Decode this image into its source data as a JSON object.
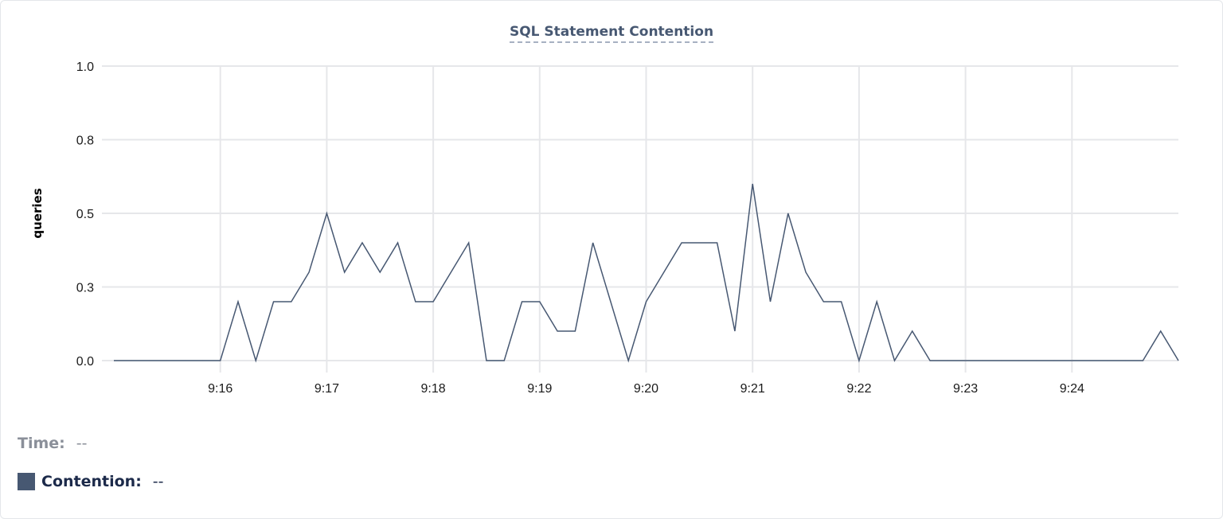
{
  "chart_data": {
    "type": "line",
    "title": "SQL Statement Contention",
    "xlabel": "",
    "ylabel": "queries",
    "ylim": [
      0,
      1.0
    ],
    "y_ticks": [
      0,
      0.25,
      0.5,
      0.75,
      1.0
    ],
    "y_tick_labels": [
      "0.0",
      "0.3",
      "0.5",
      "0.8",
      "1.0"
    ],
    "x_range": [
      "9:15:00",
      "9:25:00"
    ],
    "x_tick_labels": [
      "9:16",
      "9:17",
      "9:18",
      "9:19",
      "9:20",
      "9:21",
      "9:22",
      "9:23",
      "9:24"
    ],
    "grid": true,
    "line_color": "#475872",
    "x": [
      "9:15:00",
      "9:15:10",
      "9:15:20",
      "9:15:30",
      "9:15:40",
      "9:15:50",
      "9:16:00",
      "9:16:10",
      "9:16:20",
      "9:16:30",
      "9:16:40",
      "9:16:50",
      "9:17:00",
      "9:17:10",
      "9:17:20",
      "9:17:30",
      "9:17:40",
      "9:17:50",
      "9:18:00",
      "9:18:10",
      "9:18:20",
      "9:18:30",
      "9:18:40",
      "9:18:50",
      "9:19:00",
      "9:19:10",
      "9:19:20",
      "9:19:30",
      "9:19:40",
      "9:19:50",
      "9:20:00",
      "9:20:10",
      "9:20:20",
      "9:20:30",
      "9:20:40",
      "9:20:50",
      "9:21:00",
      "9:21:10",
      "9:21:20",
      "9:21:30",
      "9:21:40",
      "9:21:50",
      "9:22:00",
      "9:22:10",
      "9:22:20",
      "9:22:30",
      "9:22:40",
      "9:22:50",
      "9:23:00",
      "9:23:10",
      "9:23:20",
      "9:23:30",
      "9:23:40",
      "9:23:50",
      "9:24:00",
      "9:24:10",
      "9:24:20",
      "9:24:30",
      "9:24:40",
      "9:24:50",
      "9:25:00"
    ],
    "series": [
      {
        "values": [
          0,
          0,
          0,
          0,
          0,
          0,
          0,
          0.2,
          0,
          0.2,
          0.2,
          0.3,
          0.5,
          0.3,
          0.4,
          0.3,
          0.4,
          0.2,
          0.2,
          0.3,
          0.4,
          0,
          0,
          0.2,
          0.2,
          0.1,
          0.1,
          0.4,
          0.2,
          0,
          0.2,
          0.3,
          0.4,
          0.4,
          0.4,
          0.1,
          0.6,
          0.2,
          0.5,
          0.3,
          0.2,
          0.2,
          0,
          0.2,
          0,
          0.1,
          0,
          0,
          0,
          0,
          0,
          0,
          0,
          0,
          0,
          0,
          0,
          0,
          0,
          0.1,
          0
        ]
      }
    ]
  },
  "legend": {
    "time_label": "Time:",
    "time_value": "--",
    "series_label": "Contention:",
    "series_value": "--",
    "series_color": "#475872"
  }
}
